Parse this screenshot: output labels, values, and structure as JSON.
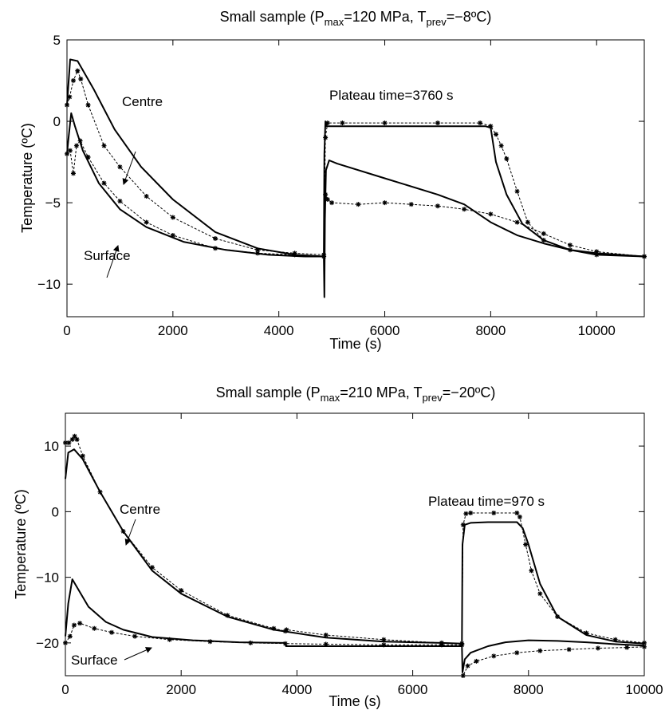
{
  "chart_data": [
    {
      "type": "line",
      "title": {
        "prefix": "Small sample (P",
        "sub1": "max",
        "mid": "=120 MPa, T",
        "sub2": "prev",
        "suffix": "=−8ºC)"
      },
      "xlabel": "Time (s)",
      "ylabel": "Temperature (ºC)",
      "xlim": [
        0,
        10900
      ],
      "ylim": [
        -12,
        5
      ],
      "xticks": [
        0,
        2000,
        4000,
        6000,
        8000,
        10000
      ],
      "yticks": [
        5,
        0,
        -5,
        -10
      ],
      "xtick_labels": [
        "0",
        "2000",
        "4000",
        "6000",
        "8000",
        "10000"
      ],
      "ytick_labels": [
        "5",
        "0",
        "−5",
        "−10"
      ],
      "grid": false,
      "legend": "none",
      "annotations": {
        "centre": "Centre",
        "surface": "Surface",
        "plateau": "Plateau time=3760 s"
      },
      "series": [
        {
          "style": "solid",
          "x": [
            0,
            60,
            200,
            500,
            900,
            1400,
            2000,
            2800,
            3600,
            4300,
            4850,
            4860,
            4880,
            4900,
            5000,
            6000,
            7000,
            7900,
            8000,
            8100,
            8300,
            8600,
            9000,
            9500,
            10000,
            10900
          ],
          "y": [
            1.0,
            3.8,
            3.7,
            2.0,
            -0.5,
            -2.8,
            -4.8,
            -6.8,
            -7.8,
            -8.2,
            -8.3,
            -2.0,
            0.0,
            -0.3,
            -0.3,
            -0.3,
            -0.3,
            -0.3,
            -0.4,
            -2.5,
            -4.5,
            -6.3,
            -7.3,
            -7.9,
            -8.2,
            -8.3
          ]
        },
        {
          "style": "markers",
          "x": [
            0,
            50,
            120,
            200,
            260,
            400,
            700,
            1000,
            1500,
            2000,
            2800,
            3600,
            4300,
            4850,
            4880,
            4920,
            5200,
            6000,
            7000,
            7800,
            8000,
            8100,
            8200,
            8300,
            8500,
            8700,
            9000,
            9500,
            10000,
            10900
          ],
          "y": [
            1.0,
            1.5,
            2.5,
            3.1,
            2.6,
            1.0,
            -1.5,
            -2.8,
            -4.6,
            -5.9,
            -7.2,
            -7.9,
            -8.1,
            -8.2,
            -1.0,
            -0.1,
            -0.1,
            -0.1,
            -0.1,
            -0.1,
            -0.3,
            -0.8,
            -1.5,
            -2.3,
            -4.3,
            -6.2,
            -7.3,
            -7.9,
            -8.2,
            -8.3
          ]
        },
        {
          "style": "solid",
          "x": [
            0,
            30,
            80,
            150,
            300,
            600,
            1000,
            1500,
            2200,
            3000,
            3800,
            4500,
            4850,
            4860,
            4870,
            4890,
            4950,
            5100,
            6000,
            7000,
            7500,
            8000,
            8500,
            9000,
            9500,
            10000,
            10900
          ],
          "y": [
            -2.0,
            -1.0,
            0.5,
            -0.3,
            -1.8,
            -3.8,
            -5.4,
            -6.5,
            -7.4,
            -7.9,
            -8.2,
            -8.3,
            -8.3,
            -10.8,
            -6.0,
            -3.0,
            -2.4,
            -2.6,
            -3.5,
            -4.5,
            -5.1,
            -6.2,
            -7.0,
            -7.5,
            -7.9,
            -8.1,
            -8.3
          ]
        },
        {
          "style": "markers",
          "x": [
            0,
            60,
            120,
            180,
            250,
            400,
            700,
            1000,
            1500,
            2000,
            2800,
            3600,
            4300,
            4850,
            4880,
            4920,
            5000,
            5500,
            6000,
            6500,
            7000,
            7500,
            8000,
            8500,
            9000,
            9500,
            10000,
            10900
          ],
          "y": [
            -2.0,
            -1.8,
            -3.2,
            -1.5,
            -1.2,
            -2.2,
            -3.8,
            -4.9,
            -6.2,
            -7.0,
            -7.8,
            -8.1,
            -8.2,
            -8.3,
            -4.5,
            -4.8,
            -5.0,
            -5.1,
            -5.0,
            -5.1,
            -5.2,
            -5.4,
            -5.7,
            -6.2,
            -6.9,
            -7.6,
            -8.0,
            -8.3
          ]
        }
      ]
    },
    {
      "type": "line",
      "title": {
        "prefix": "Small sample (P",
        "sub1": "max",
        "mid": "=210 MPa, T",
        "sub2": "prev",
        "suffix": "=−20ºC)"
      },
      "xlabel": "Time (s)",
      "ylabel": "Temperature (ºC)",
      "xlim": [
        0,
        10000
      ],
      "ylim": [
        -25,
        15
      ],
      "xticks": [
        0,
        2000,
        4000,
        6000,
        8000,
        10000
      ],
      "yticks": [
        10,
        0,
        -10,
        -20
      ],
      "xtick_labels": [
        "0",
        "2000",
        "4000",
        "6000",
        "8000",
        "10000"
      ],
      "ytick_labels": [
        "10",
        "0",
        "−10",
        "−20"
      ],
      "grid": false,
      "legend": "none",
      "annotations": {
        "centre": "Centre",
        "surface": "Surface",
        "plateau": "Plateau time=970 s"
      },
      "series": [
        {
          "style": "solid",
          "x": [
            0,
            50,
            150,
            300,
            600,
            1000,
            1500,
            2000,
            2800,
            3600,
            4500,
            5500,
            6500,
            6850,
            6860,
            6900,
            7000,
            7300,
            7600,
            7800,
            7900,
            8000,
            8200,
            8500,
            9000,
            9500,
            10000
          ],
          "y": [
            5.0,
            9.0,
            9.5,
            8.0,
            3.0,
            -3.0,
            -9.0,
            -12.5,
            -16.0,
            -18.0,
            -19.2,
            -19.8,
            -20.0,
            -20.1,
            -5.0,
            -2.0,
            -1.7,
            -1.6,
            -1.6,
            -1.6,
            -2.5,
            -5.0,
            -11.0,
            -16.0,
            -18.8,
            -19.8,
            -20.1
          ]
        },
        {
          "style": "markers",
          "x": [
            0,
            60,
            120,
            160,
            200,
            300,
            600,
            1000,
            1500,
            2000,
            2800,
            3600,
            3800,
            3820,
            4500,
            5500,
            6500,
            6850,
            6870,
            6920,
            7000,
            7400,
            7800,
            7850,
            7950,
            8050,
            8200,
            8500,
            9000,
            9500,
            10000
          ],
          "y": [
            10.5,
            10.5,
            11.0,
            11.5,
            11.0,
            8.5,
            3.0,
            -3.0,
            -8.5,
            -12.0,
            -15.8,
            -17.8,
            -18.2,
            -18.0,
            -18.8,
            -19.5,
            -20.0,
            -20.1,
            -2.0,
            -0.3,
            -0.2,
            -0.2,
            -0.2,
            -0.8,
            -5.0,
            -9.0,
            -12.5,
            -16.0,
            -18.5,
            -19.5,
            -20.0
          ]
        },
        {
          "style": "solid",
          "x": [
            0,
            50,
            120,
            200,
            400,
            700,
            1000,
            1500,
            2200,
            3000,
            3800,
            3810,
            4500,
            5500,
            6500,
            6850,
            6860,
            6900,
            7000,
            7300,
            7600,
            8000,
            8500,
            9000,
            9500,
            10000
          ],
          "y": [
            -19.0,
            -14.0,
            -10.3,
            -11.5,
            -14.5,
            -16.8,
            -18.0,
            -19.1,
            -19.6,
            -19.9,
            -20.0,
            -20.5,
            -20.5,
            -20.5,
            -20.5,
            -20.5,
            -24.5,
            -22.5,
            -21.5,
            -20.5,
            -19.9,
            -19.6,
            -19.7,
            -19.9,
            -20.2,
            -20.4
          ]
        },
        {
          "style": "markers",
          "x": [
            0,
            80,
            150,
            250,
            500,
            800,
            1200,
            1800,
            2500,
            3200,
            3800,
            4500,
            5500,
            6500,
            6850,
            6870,
            6950,
            7100,
            7400,
            7800,
            8200,
            8700,
            9200,
            9700,
            10000
          ],
          "y": [
            -20.0,
            -19.0,
            -17.3,
            -17.0,
            -17.8,
            -18.4,
            -19.0,
            -19.5,
            -19.8,
            -20.0,
            -20.1,
            -20.2,
            -20.3,
            -20.3,
            -20.3,
            -25.0,
            -23.5,
            -22.8,
            -22.0,
            -21.5,
            -21.2,
            -21.0,
            -20.8,
            -20.7,
            -20.6
          ]
        }
      ]
    }
  ]
}
